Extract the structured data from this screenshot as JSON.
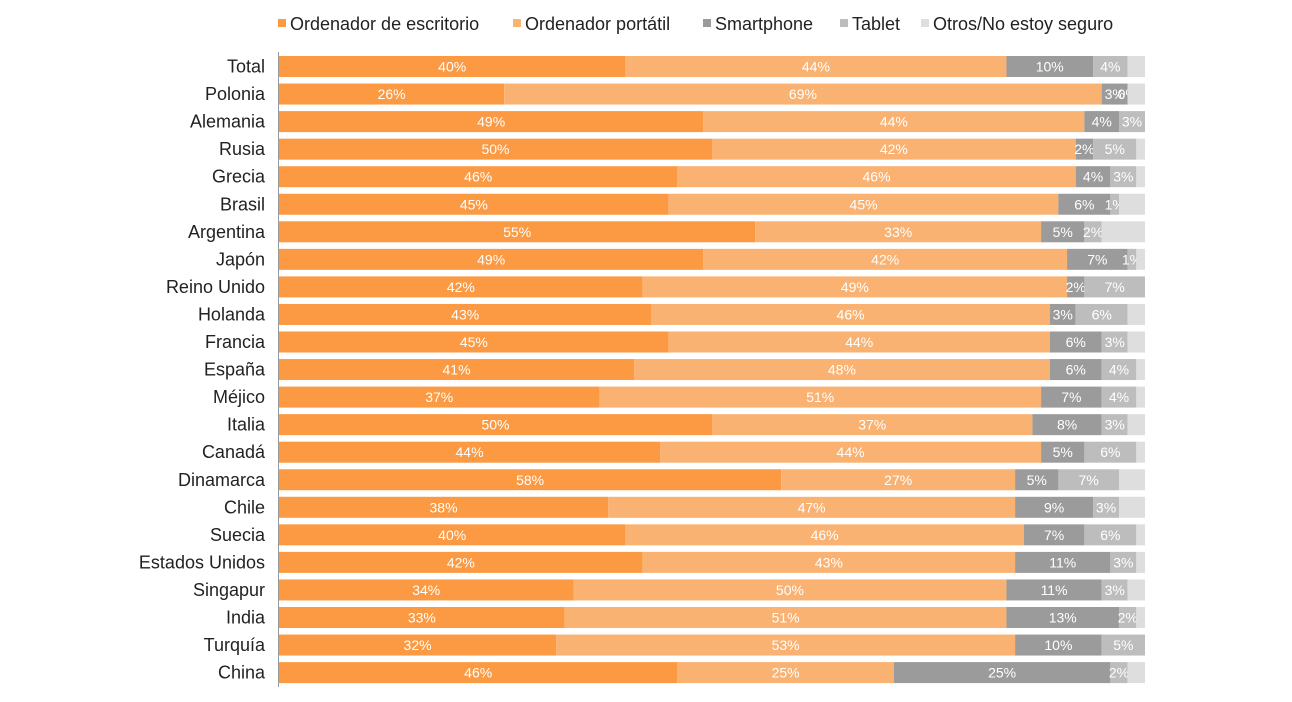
{
  "chart_data": {
    "type": "bar",
    "orientation": "horizontal",
    "stacked": true,
    "title": "",
    "xlabel": "",
    "ylabel": "",
    "xlim": [
      0,
      100
    ],
    "grid": false,
    "legend_position": "top",
    "categories": [
      "Total",
      "Polonia",
      "Alemania",
      "Rusia",
      "Grecia",
      "Brasil",
      "Argentina",
      "Japón",
      "Reino Unido",
      "Holanda",
      "Francia",
      "España",
      "Méjico",
      "Italia",
      "Canadá",
      "Dinamarca",
      "Chile",
      "Suecia",
      "Estados Unidos",
      "Singapur",
      "India",
      "Turquía",
      "China"
    ],
    "series": [
      {
        "name": "Ordenador de escritorio",
        "color": "#fb9a43",
        "values": [
          40,
          26,
          49,
          50,
          46,
          45,
          55,
          49,
          42,
          43,
          45,
          41,
          37,
          50,
          44,
          58,
          38,
          40,
          42,
          34,
          33,
          32,
          46
        ],
        "labels": [
          "40%",
          "26%",
          "49%",
          "50%",
          "46%",
          "45%",
          "55%",
          "49%",
          "42%",
          "43%",
          "45%",
          "41%",
          "37%",
          "50%",
          "44%",
          "58%",
          "38%",
          "40%",
          "42%",
          "34%",
          "33%",
          "32%",
          "46%"
        ]
      },
      {
        "name": "Ordenador portátil",
        "color": "#f9b272",
        "values": [
          44,
          69,
          44,
          42,
          46,
          45,
          33,
          42,
          49,
          46,
          44,
          48,
          51,
          37,
          44,
          27,
          47,
          46,
          43,
          50,
          51,
          53,
          25
        ],
        "labels": [
          "44%",
          "69%",
          "44%",
          "42%",
          "46%",
          "45%",
          "33%",
          "42%",
          "49%",
          "46%",
          "44%",
          "48%",
          "51%",
          "37%",
          "44%",
          "27%",
          "47%",
          "46%",
          "43%",
          "50%",
          "51%",
          "53%",
          "25%"
        ]
      },
      {
        "name": "Smartphone",
        "color": "#9b9b9b",
        "values": [
          10,
          3,
          4,
          2,
          4,
          6,
          5,
          7,
          2,
          3,
          6,
          6,
          7,
          8,
          5,
          5,
          9,
          7,
          11,
          11,
          13,
          10,
          25
        ],
        "labels": [
          "10%",
          "3%",
          "4%",
          "2%",
          "4%",
          "6%",
          "5%",
          "7%",
          "2%",
          "3%",
          "6%",
          "6%",
          "7%",
          "8%",
          "5%",
          "5%",
          "9%",
          "7%",
          "11%",
          "11%",
          "13%",
          "10%",
          "25%"
        ]
      },
      {
        "name": "Tablet",
        "color": "#bdbdbd",
        "values": [
          4,
          0,
          3,
          5,
          3,
          1,
          2,
          1,
          7,
          6,
          3,
          4,
          4,
          3,
          6,
          7,
          3,
          6,
          3,
          3,
          2,
          5,
          2
        ],
        "labels": [
          "4%",
          "0%",
          "3%",
          "5%",
          "3%",
          "1%",
          "2%",
          "1%",
          "7%",
          "6%",
          "3%",
          "4%",
          "4%",
          "3%",
          "6%",
          "7%",
          "3%",
          "6%",
          "3%",
          "3%",
          "2%",
          "5%",
          "2%"
        ]
      },
      {
        "name": "Otros/No estoy seguro",
        "color": "#dedede",
        "values": [
          2,
          2,
          0,
          1,
          1,
          3,
          5,
          1,
          0,
          2,
          2,
          1,
          1,
          2,
          1,
          3,
          3,
          1,
          1,
          2,
          1,
          0,
          2
        ],
        "labels": [
          "",
          "",
          "",
          "",
          "",
          "",
          "",
          "",
          "",
          "",
          "",
          "",
          "",
          "",
          "",
          "",
          "",
          "",
          "",
          "",
          "",
          "",
          ""
        ]
      }
    ]
  }
}
